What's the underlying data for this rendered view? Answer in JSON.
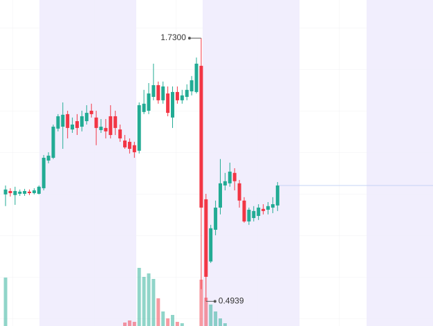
{
  "chart_data": {
    "type": "candlestick",
    "open": [
      0.996,
      1.012,
      0.993,
      0.999,
      0.999,
      1.009,
      1.002,
      0.999,
      1.025,
      1.155,
      1.168,
      1.305,
      1.314,
      1.373,
      1.301,
      1.34,
      1.314,
      1.34,
      1.389,
      1.357,
      1.298,
      1.308,
      1.363,
      1.363,
      1.301,
      1.249,
      1.243,
      1.227,
      1.201,
      1.383,
      1.389,
      1.454,
      1.509,
      1.438,
      1.47,
      1.357,
      1.477,
      1.438,
      1.454,
      1.48,
      1.477,
      1.6,
      0.973,
      0.681,
      0.83,
      0.934,
      1.038,
      1.048,
      1.097,
      1.048,
      0.967,
      0.869,
      0.885,
      0.895,
      0.928,
      0.924,
      0.934,
      0.944
    ],
    "high": [
      1.038,
      1.025,
      1.032,
      1.019,
      1.022,
      1.019,
      1.025,
      1.038,
      1.181,
      1.194,
      1.324,
      1.373,
      1.428,
      1.389,
      1.357,
      1.373,
      1.389,
      1.415,
      1.422,
      1.389,
      1.35,
      1.35,
      1.415,
      1.389,
      1.324,
      1.275,
      1.259,
      1.243,
      1.428,
      1.487,
      1.519,
      1.61,
      1.526,
      1.526,
      1.503,
      1.503,
      1.503,
      1.487,
      1.513,
      1.552,
      1.639,
      1.73,
      0.999,
      0.853,
      0.967,
      1.162,
      1.097,
      1.145,
      1.119,
      1.064,
      0.983,
      0.934,
      0.941,
      0.95,
      0.95,
      0.96,
      0.983,
      1.054
    ],
    "low": [
      0.941,
      0.986,
      0.947,
      0.989,
      0.989,
      0.993,
      0.996,
      0.996,
      1.015,
      1.142,
      1.162,
      1.292,
      1.21,
      1.259,
      1.285,
      1.275,
      1.292,
      1.324,
      1.357,
      1.227,
      1.285,
      1.259,
      1.259,
      1.275,
      1.243,
      1.21,
      1.188,
      1.168,
      1.188,
      1.373,
      1.373,
      1.438,
      1.422,
      1.422,
      1.363,
      1.308,
      1.422,
      1.422,
      1.438,
      1.461,
      1.47,
      0.551,
      0.4939,
      0.674,
      0.804,
      0.902,
      1.015,
      1.032,
      1.015,
      0.934,
      0.863,
      0.853,
      0.869,
      0.876,
      0.902,
      0.902,
      0.908,
      0.918
    ],
    "close": [
      1.019,
      1.002,
      1.012,
      1.009,
      1.012,
      1.002,
      1.015,
      1.032,
      1.168,
      1.178,
      1.314,
      1.363,
      1.37,
      1.308,
      1.324,
      1.308,
      1.363,
      1.379,
      1.373,
      1.308,
      1.314,
      1.292,
      1.275,
      1.308,
      1.259,
      1.217,
      1.21,
      1.194,
      1.415,
      1.422,
      1.47,
      1.509,
      1.438,
      1.503,
      1.379,
      1.477,
      1.438,
      1.461,
      1.487,
      1.532,
      1.61,
      0.934,
      0.609,
      0.837,
      0.934,
      1.048,
      1.058,
      1.103,
      1.058,
      0.967,
      0.869,
      0.924,
      0.918,
      0.934,
      0.918,
      0.941,
      0.95,
      1.038
    ],
    "volume": [
      70,
      null,
      null,
      null,
      null,
      null,
      null,
      null,
      null,
      null,
      null,
      null,
      null,
      null,
      null,
      null,
      null,
      null,
      null,
      null,
      null,
      null,
      null,
      null,
      null,
      5,
      8,
      6,
      84,
      71,
      76,
      68,
      40,
      21,
      11,
      16,
      6,
      4,
      null,
      null,
      null,
      67,
      41,
      31,
      21,
      11,
      4,
      null,
      null,
      null,
      null,
      null,
      null,
      null,
      null,
      null,
      null,
      null
    ],
    "ylim": [
      0.378,
      1.909
    ],
    "volume_lim": [
      0,
      100
    ],
    "up_color": "#22ab94",
    "down_color": "#f23645",
    "annotations": [
      {
        "value": 1.73,
        "label": "1.7300"
      },
      {
        "value": 0.4939,
        "label": "0.4939"
      }
    ],
    "last_price_line": true
  }
}
